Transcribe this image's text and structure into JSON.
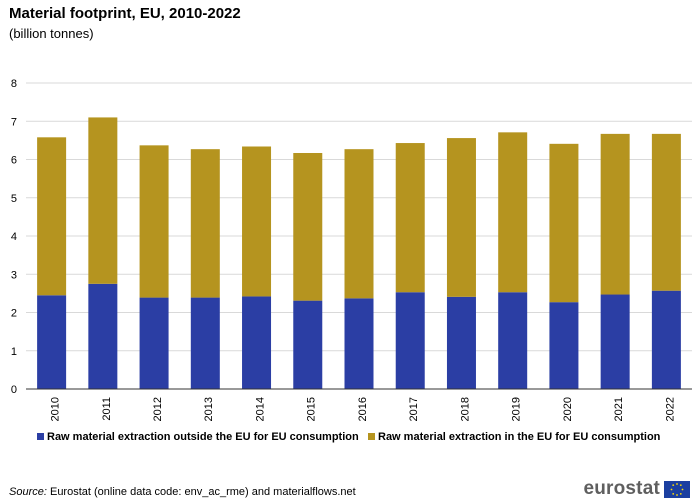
{
  "header": {
    "title": "Material footprint, EU, 2010-2022",
    "subtitle": "(billion tonnes)"
  },
  "footer": {
    "source_label": "Source:",
    "source_text": " Eurostat (online data code: env_ac_rme) and materialflows.net",
    "logo_text": "eurostat"
  },
  "colors": {
    "outside": "#2b3ea4",
    "inside": "#b5941f",
    "grid": "#d9d9d9",
    "axis": "#333333"
  },
  "chart_data": {
    "type": "bar",
    "stacked": true,
    "title": "Material footprint, EU, 2010-2022",
    "ylabel": "billion tonnes",
    "ylim": [
      0,
      8
    ],
    "yticks": [
      0,
      1,
      2,
      3,
      4,
      5,
      6,
      7,
      8
    ],
    "grid": true,
    "legend_position": "bottom",
    "categories": [
      "2010",
      "2011",
      "2012",
      "2013",
      "2014",
      "2015",
      "2016",
      "2017",
      "2018",
      "2019",
      "2020",
      "2021",
      "2022"
    ],
    "series": [
      {
        "name": "Raw material extraction outside the EU for EU consumption",
        "values": [
          2.45,
          2.75,
          2.39,
          2.39,
          2.42,
          2.31,
          2.37,
          2.53,
          2.41,
          2.53,
          2.27,
          2.47,
          2.57
        ]
      },
      {
        "name": "Raw material extraction in the EU for EU consumption",
        "values": [
          4.13,
          4.35,
          3.98,
          3.88,
          3.92,
          3.86,
          3.9,
          3.9,
          4.15,
          4.18,
          4.14,
          4.2,
          4.1
        ]
      }
    ]
  }
}
